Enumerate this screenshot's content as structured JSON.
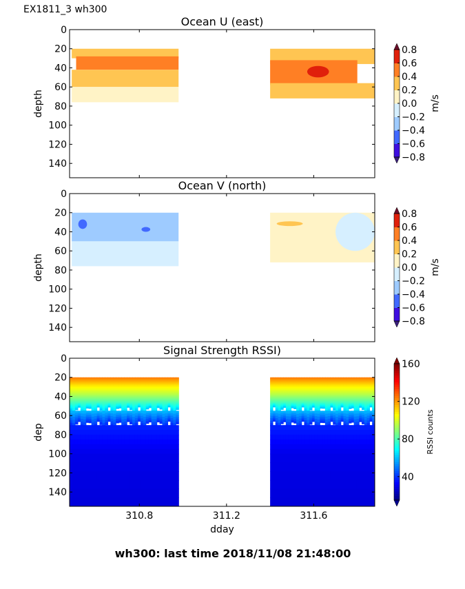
{
  "figure": {
    "suptitle": "EX1811_3 wh300",
    "footer": "wh300: last time 2018/11/08 21:48:00"
  },
  "chart_data": [
    {
      "type": "heatmap",
      "title": "Ocean U (east)",
      "xlabel": "",
      "ylabel": "depth",
      "xlim": [
        310.48,
        311.88
      ],
      "ylim": [
        155,
        0
      ],
      "yticks": [
        0,
        20,
        40,
        60,
        80,
        100,
        120,
        140
      ],
      "xticks": [
        310.8,
        311.2,
        311.6
      ],
      "xticklabels_visible": false,
      "data_segments": [
        {
          "x_start": 310.49,
          "x_end": 310.98,
          "depth_top": 20,
          "depth_bottom": 76
        },
        {
          "x_start": 311.4,
          "x_end": 311.88,
          "depth_top": 20,
          "depth_bottom": 72
        }
      ],
      "features": [
        {
          "segment": 0,
          "x": [
            310.49,
            310.98
          ],
          "depth": [
            20,
            30
          ],
          "value": 0.3
        },
        {
          "segment": 0,
          "x": [
            310.51,
            310.98
          ],
          "depth": [
            28,
            42
          ],
          "value": 0.5
        },
        {
          "segment": 0,
          "x": [
            310.49,
            310.98
          ],
          "depth": [
            42,
            60
          ],
          "value": 0.3
        },
        {
          "segment": 0,
          "x": [
            310.49,
            310.98
          ],
          "depth": [
            60,
            76
          ],
          "value": 0.1
        },
        {
          "segment": 1,
          "x": [
            311.4,
            311.88
          ],
          "depth": [
            20,
            36
          ],
          "value": 0.3
        },
        {
          "segment": 1,
          "x": [
            311.4,
            311.8
          ],
          "depth": [
            32,
            58
          ],
          "value": 0.5
        },
        {
          "segment": 1,
          "x": [
            311.57,
            311.67
          ],
          "depth": [
            38,
            50
          ],
          "value": 0.7
        },
        {
          "segment": 1,
          "x": [
            311.4,
            311.88
          ],
          "depth": [
            56,
            72
          ],
          "value": 0.2
        }
      ],
      "colorbar": {
        "label": "m/s",
        "ticks": [
          0.8,
          0.6,
          0.4,
          0.2,
          0.0,
          -0.2,
          -0.4,
          -0.6,
          -0.8
        ],
        "ticklabels": [
          "0.8",
          "0.6",
          "0.4",
          "0.2",
          "0.0",
          "−0.2",
          "−0.4",
          "−0.6",
          "−0.8"
        ],
        "range": [
          -0.8,
          0.8
        ],
        "extend": "both",
        "colors": [
          "#3e0ee0",
          "#4169ff",
          "#9ecbff",
          "#d6efff",
          "#fff3c6",
          "#ffc552",
          "#ff7f24",
          "#e0200b"
        ],
        "extend_colors": {
          "low": "#3a1f7a",
          "high": "#6b0f2a"
        }
      }
    },
    {
      "type": "heatmap",
      "title": "Ocean V (north)",
      "xlabel": "",
      "ylabel": "depth",
      "xlim": [
        310.48,
        311.88
      ],
      "ylim": [
        155,
        0
      ],
      "yticks": [
        0,
        20,
        40,
        60,
        80,
        100,
        120,
        140
      ],
      "xticks": [
        310.8,
        311.2,
        311.6
      ],
      "xticklabels_visible": false,
      "data_segments": [
        {
          "x_start": 310.49,
          "x_end": 310.98,
          "depth_top": 20,
          "depth_bottom": 76
        },
        {
          "x_start": 311.4,
          "x_end": 311.88,
          "depth_top": 20,
          "depth_bottom": 72
        }
      ],
      "features": [
        {
          "segment": 0,
          "x": [
            310.49,
            310.98
          ],
          "depth": [
            20,
            50
          ],
          "value": -0.3
        },
        {
          "segment": 0,
          "x": [
            310.52,
            310.56
          ],
          "depth": [
            27,
            37
          ],
          "value": -0.5
        },
        {
          "segment": 0,
          "x": [
            310.81,
            310.85
          ],
          "depth": [
            35,
            40
          ],
          "value": -0.5
        },
        {
          "segment": 0,
          "x": [
            310.49,
            310.98
          ],
          "depth": [
            50,
            76
          ],
          "value": -0.1
        },
        {
          "segment": 1,
          "x": [
            311.4,
            311.88
          ],
          "depth": [
            20,
            72
          ],
          "value": 0.1
        },
        {
          "segment": 1,
          "x": [
            311.43,
            311.55
          ],
          "depth": [
            29,
            34
          ],
          "value": 0.3
        },
        {
          "segment": 1,
          "x": [
            311.7,
            311.88
          ],
          "depth": [
            20,
            60
          ],
          "value": -0.1
        }
      ],
      "colorbar": {
        "label": "m/s",
        "ticks": [
          0.8,
          0.6,
          0.4,
          0.2,
          0.0,
          -0.2,
          -0.4,
          -0.6,
          -0.8
        ],
        "ticklabels": [
          "0.8",
          "0.6",
          "0.4",
          "0.2",
          "0.0",
          "−0.2",
          "−0.4",
          "−0.6",
          "−0.8"
        ],
        "range": [
          -0.8,
          0.8
        ],
        "extend": "both",
        "colors": [
          "#3e0ee0",
          "#4169ff",
          "#9ecbff",
          "#d6efff",
          "#fff3c6",
          "#ffc552",
          "#ff7f24",
          "#e0200b"
        ],
        "extend_colors": {
          "low": "#3a1f7a",
          "high": "#6b0f2a"
        }
      }
    },
    {
      "type": "heatmap",
      "title": "Signal Strength RSSI)",
      "xlabel": "dday",
      "ylabel": "dep",
      "xlim": [
        310.48,
        311.88
      ],
      "ylim": [
        155,
        0
      ],
      "yticks": [
        0,
        20,
        40,
        60,
        80,
        100,
        120,
        140
      ],
      "xticks": [
        310.8,
        311.2,
        311.6
      ],
      "xticklabels": [
        "310.8",
        "311.2",
        "311.6"
      ],
      "xticklabels_visible": true,
      "data_segments": [
        {
          "x_start": 310.48,
          "x_end": 310.98,
          "depth_top": 20,
          "depth_bottom": 155
        },
        {
          "x_start": 311.4,
          "x_end": 311.88,
          "depth_top": 20,
          "depth_bottom": 155
        }
      ],
      "profile": [
        {
          "depth": 20,
          "value": 125
        },
        {
          "depth": 28,
          "value": 110
        },
        {
          "depth": 38,
          "value": 95
        },
        {
          "depth": 46,
          "value": 80
        },
        {
          "depth": 55,
          "value": 60
        },
        {
          "depth": 70,
          "value": 38
        },
        {
          "depth": 100,
          "value": 30
        },
        {
          "depth": 155,
          "value": 28
        }
      ],
      "colorbar": {
        "label": "RSSI counts",
        "ticks": [
          160,
          120,
          80,
          40
        ],
        "ticklabels": [
          "160",
          "120",
          "80",
          "40"
        ],
        "range": [
          15,
          160
        ],
        "extend": "both",
        "colormap": "jet"
      }
    }
  ]
}
